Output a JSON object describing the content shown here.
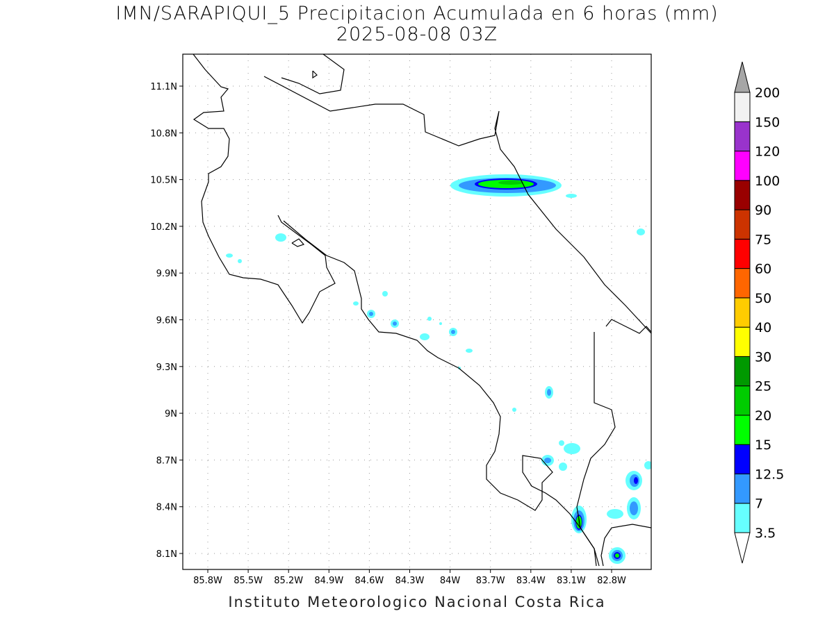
{
  "title": {
    "line1": "IMN/SARAPIQUI_5 Precipitacion Acumulada en 6 horas (mm)",
    "line2": "2025-08-08 03Z"
  },
  "footer": "Instituto Meteorologico Nacional Costa Rica",
  "map": {
    "lon_ticks": [
      "85.8W",
      "85.5W",
      "85.2W",
      "84.9W",
      "84.6W",
      "84.3W",
      "84W",
      "83.7W",
      "83.4W",
      "83.1W",
      "82.8W"
    ],
    "lat_ticks": [
      "11.1N",
      "10.8N",
      "10.5N",
      "10.2N",
      "9.9N",
      "9.6N",
      "9.3N",
      "9N",
      "8.7N",
      "8.4N",
      "8.1N"
    ]
  },
  "colorbar": {
    "labels": [
      "3.5",
      "7",
      "12.5",
      "15",
      "20",
      "25",
      "30",
      "40",
      "50",
      "60",
      "75",
      "90",
      "100",
      "120",
      "150",
      "200"
    ],
    "colors": [
      "#66ffff",
      "#3399ff",
      "#0000ff",
      "#00ff00",
      "#00cc00",
      "#009900",
      "#ffff00",
      "#ffcc00",
      "#ff6600",
      "#ff0000",
      "#cc3300",
      "#990000",
      "#ff00ff",
      "#9933cc",
      "#f2f2f2"
    ],
    "over_color": "#a6a6a6",
    "under_color": "#ffffff"
  }
}
